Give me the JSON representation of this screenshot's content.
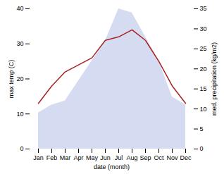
{
  "chart_data": {
    "type": "line",
    "categories": [
      "Jan",
      "Feb",
      "Mar",
      "Apr",
      "May",
      "Jun",
      "Jul",
      "Aug",
      "Sep",
      "Oct",
      "Nov",
      "Dec"
    ],
    "series": [
      {
        "type": "area",
        "axis": "y2",
        "color": "#b3c0e8",
        "values": [
          9,
          11,
          12,
          17,
          22,
          27,
          35,
          34,
          28,
          22,
          13,
          11
        ]
      },
      {
        "type": "line",
        "color": "#aa2222",
        "values": [
          13,
          18,
          22,
          24,
          26,
          31,
          32,
          34,
          31,
          25,
          18,
          13
        ]
      }
    ],
    "xlabel": "date (month)",
    "ylabel": "max temp (C)",
    "y2label": "med. precipitation (kg/m2)",
    "ylim": [
      0,
      40
    ],
    "yticks": [
      0,
      10,
      20,
      30,
      40
    ],
    "y2lim": [
      0,
      35
    ],
    "y2ticks": [
      0,
      5,
      10,
      15,
      20,
      25,
      30,
      35
    ],
    "grid": false
  }
}
